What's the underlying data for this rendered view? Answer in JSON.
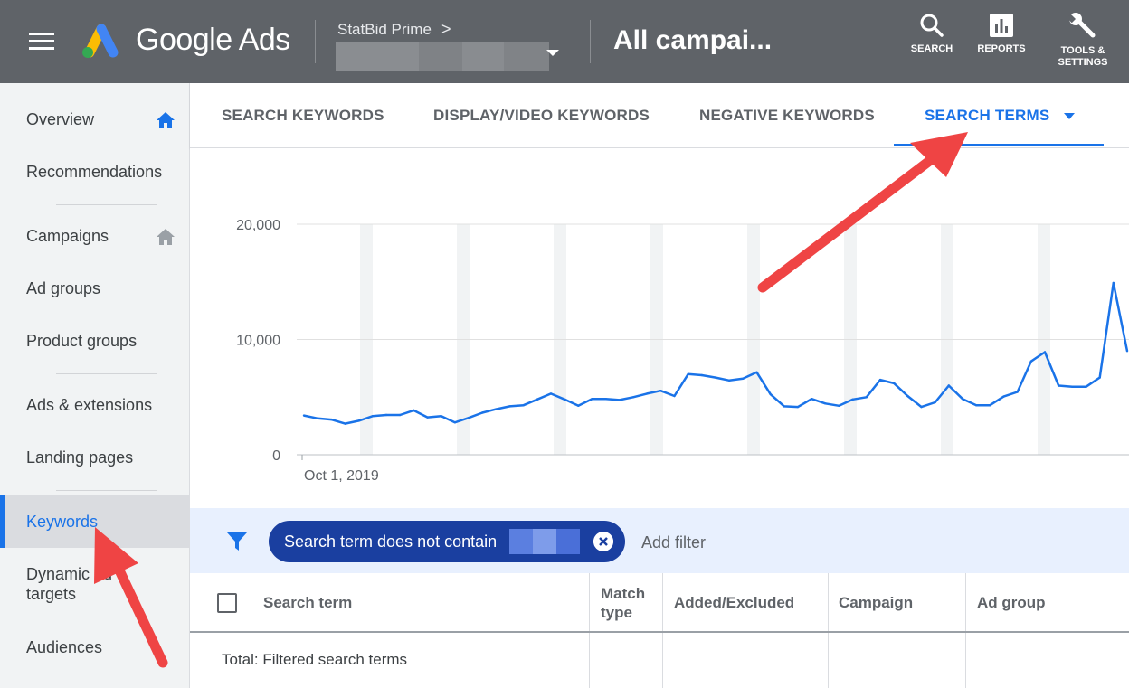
{
  "header": {
    "product_name": "Google Ads",
    "account_name": "StatBid Prime",
    "account_chevron": ">",
    "page_title": "All campai...",
    "buttons": [
      {
        "label": "SEARCH",
        "icon": "search-icon"
      },
      {
        "label": "REPORTS",
        "icon": "reports-icon"
      },
      {
        "label_line1": "TOOLS &",
        "label_line2": "SETTINGS",
        "icon": "wrench-icon"
      }
    ]
  },
  "sidebar": {
    "items": [
      {
        "label": "Overview",
        "icon": "home-icon"
      },
      {
        "label": "Recommendations"
      },
      {
        "label": "Campaigns",
        "icon": "home-icon"
      },
      {
        "label": "Ad groups"
      },
      {
        "label": "Product groups"
      },
      {
        "label": "Ads & extensions"
      },
      {
        "label": "Landing pages"
      },
      {
        "label": "Keywords",
        "active": true
      },
      {
        "label_line1": "Dynamic ad",
        "label_line2": "targets"
      },
      {
        "label": "Audiences"
      }
    ]
  },
  "tabs": [
    {
      "label": "SEARCH KEYWORDS"
    },
    {
      "label": "DISPLAY/VIDEO KEYWORDS"
    },
    {
      "label": "NEGATIVE KEYWORDS"
    },
    {
      "label": "SEARCH TERMS",
      "active": true
    }
  ],
  "chart_data": {
    "type": "line",
    "title": "",
    "xlabel": "",
    "ylabel": "",
    "x_start_label": "Oct 1, 2019",
    "yticks": [
      "20,000",
      "10,000",
      "0"
    ],
    "ylim": [
      0,
      20000
    ],
    "grid": true,
    "series": [
      {
        "color": "#1a73e8",
        "values": [
          3400,
          3150,
          3050,
          2700,
          2950,
          3350,
          3450,
          3450,
          3850,
          3250,
          3350,
          2800,
          3200,
          3650,
          3950,
          4200,
          4300,
          4800,
          5300,
          4800,
          4250,
          4850,
          4850,
          4750,
          5000,
          5300,
          5550,
          5100,
          7000,
          6900,
          6700,
          6450,
          6600,
          7150,
          5250,
          4200,
          4150,
          4850,
          4450,
          4250,
          4800,
          5000,
          6500,
          6200,
          5100,
          4150,
          4550,
          6000,
          4850,
          4300,
          4300,
          5050,
          5450,
          8100,
          8900,
          6000,
          5900,
          5900,
          6700,
          14900,
          9000
        ]
      }
    ]
  },
  "filter": {
    "chip_label": "Search term does not contain",
    "add_filter_label": "Add filter"
  },
  "table": {
    "columns": [
      "Search term",
      "Match type",
      "Added/Excluded",
      "Campaign",
      "Ad group"
    ],
    "match_line1": "Match",
    "match_line2": "type",
    "total_label": "Total: Filtered search terms"
  },
  "colors": {
    "header_bg": "#5f6368",
    "accent": "#1a73e8",
    "chip_bg": "#1a3fa0",
    "annotation_arrow": "#ef4444"
  }
}
